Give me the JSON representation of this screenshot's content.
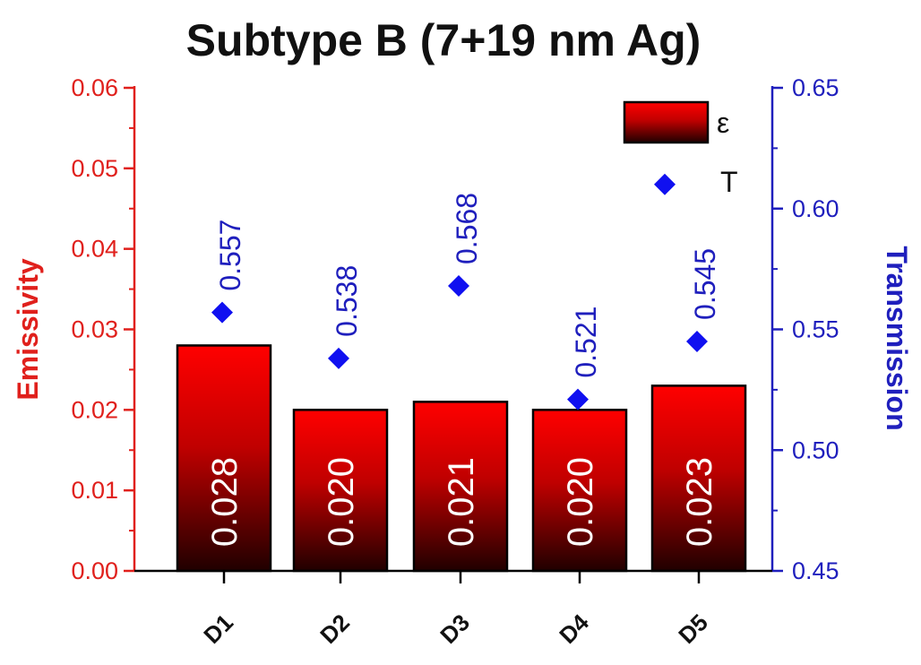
{
  "chart_data": {
    "type": "bar",
    "title": "Subtype B (7+19 nm Ag)",
    "categories": [
      "D1",
      "D2",
      "D3",
      "D4",
      "D5"
    ],
    "series": [
      {
        "name": "ε",
        "axis": "left",
        "type": "bar",
        "values": [
          0.028,
          0.02,
          0.021,
          0.02,
          0.023
        ],
        "labels": [
          "0.028",
          "0.020",
          "0.021",
          "0.020",
          "0.023"
        ]
      },
      {
        "name": "T",
        "axis": "right",
        "type": "scatter",
        "marker": "diamond",
        "values": [
          0.557,
          0.538,
          0.568,
          0.521,
          0.545
        ],
        "labels": [
          "0.557",
          "0.538",
          "0.568",
          "0.521",
          "0.545"
        ]
      }
    ],
    "ylabel": "Emissivity",
    "ylim": [
      0,
      0.06
    ],
    "yticks": [
      "0.00",
      "0.01",
      "0.02",
      "0.03",
      "0.04",
      "0.05",
      "0.06"
    ],
    "y2label": "Transmission",
    "y2lim": [
      0.45,
      0.65
    ],
    "y2ticks": [
      "0.45",
      "0.50",
      "0.55",
      "0.60",
      "0.65"
    ],
    "legend_position": "top-right",
    "legend_T_marker_value": 0.61,
    "grid": false,
    "colors": {
      "bar_top": "#ff0000",
      "bar_bottom": "#200000",
      "left_axis": "#e0201c",
      "right_axis": "#1f1fbd",
      "marker": "#1010f0"
    }
  }
}
